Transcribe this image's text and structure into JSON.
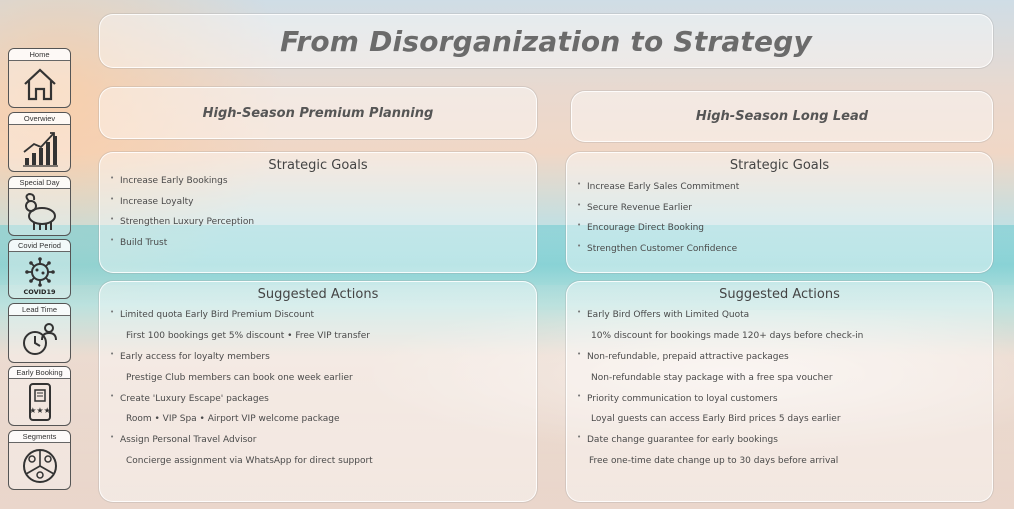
{
  "page_title": "From Disorganization to Strategy",
  "nav": [
    {
      "label": "Home",
      "icon": "home-icon"
    },
    {
      "label": "Overwiev",
      "icon": "growth-chart-icon"
    },
    {
      "label": "Special Day",
      "icon": "ram-icon"
    },
    {
      "label": "Covid Period",
      "icon": "virus-icon",
      "sub": "COVID19"
    },
    {
      "label": "Lead Time",
      "icon": "clock-person-icon"
    },
    {
      "label": "Early Booking",
      "icon": "phone-hotel-icon"
    },
    {
      "label": "Segments",
      "icon": "segments-icon"
    }
  ],
  "left": {
    "header": "High-Season Premium Planning",
    "goals_title": "Strategic Goals",
    "goals": [
      "Increase Early  Bookings",
      "Increase Loyalty",
      "Strengthen Luxury Perception",
      "Build Trust"
    ],
    "actions_title": "Suggested Actions",
    "actions": [
      {
        "head": "Limited quota Early Bird Premium Discount",
        "detail": "First 100 bookings get 5% discount • Free VIP transfer"
      },
      {
        "head": "Early access for loyalty members",
        "detail": "Prestige Club members can book one week earlier"
      },
      {
        "head": "Create 'Luxury Escape' packages",
        "detail": "Room • VIP Spa •  Airport VIP welcome package"
      },
      {
        "head": "Assign Personal Travel Advisor",
        "detail": "Concierge assignment via WhatsApp for direct support"
      }
    ]
  },
  "right": {
    "header": "High-Season Long Lead",
    "goals_title": "Strategic Goals",
    "goals": [
      "Increase Early Sales Commitment",
      "Secure Revenue Earlier",
      " Encourage Direct Booking",
      "Strengthen Customer Confidence"
    ],
    "actions_title": "Suggested Actions",
    "actions": [
      {
        "head": "Early Bird Offers with Limited Quota",
        "detail": "10% discount for bookings made 120+ days before check-in"
      },
      {
        "head": "Non-refundable, prepaid attractive packages",
        "detail": "Non-refundable stay package with a free spa voucher"
      },
      {
        "head": "Priority communication to loyal customers",
        "detail": "Loyal guests can access Early Bird prices 5 days earlier"
      },
      {
        "head": "Date change guarantee for early bookings",
        "detail": "Free one-time date change up to 30 days before arrival"
      }
    ]
  }
}
